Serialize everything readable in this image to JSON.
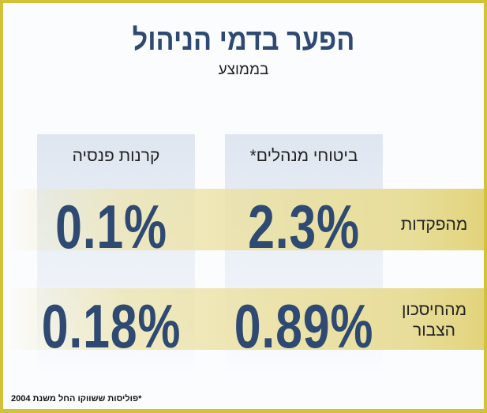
{
  "title": "הפער בדמי הניהול",
  "subtitle": "בממוצע",
  "columns": [
    "ביטוחי מנהלים*",
    "קרנות פנסיה"
  ],
  "rows": [
    {
      "label": "מהפקדות",
      "values": [
        "2.3%",
        "0.1%"
      ]
    },
    {
      "label": "מהחיסכון הצבור",
      "values": [
        "0.89%",
        "0.18%"
      ]
    }
  ],
  "footnote": "*פוליסות ששווקו החל משנת 2004",
  "colors": {
    "border": "#d2c23a",
    "numbers": "#2e4a72",
    "band": "#e8dd99",
    "column": "#dfe6f0"
  }
}
